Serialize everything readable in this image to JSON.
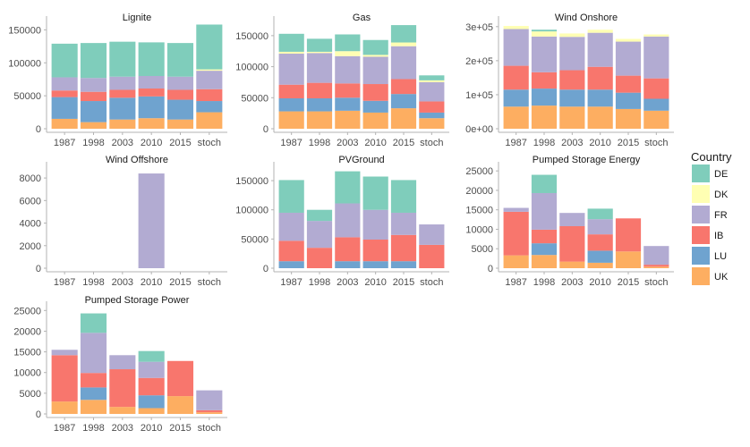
{
  "chart_data": {
    "type": "bar",
    "stacked": true,
    "legend": {
      "title": "Country",
      "placement": "right",
      "entries": [
        {
          "name": "DE",
          "color": "#7FCDBB"
        },
        {
          "name": "DK",
          "color": "#FFFFB3"
        },
        {
          "name": "FR",
          "color": "#B2ABD2"
        },
        {
          "name": "IB",
          "color": "#F8766D"
        },
        {
          "name": "LU",
          "color": "#6FA3CF"
        },
        {
          "name": "UK",
          "color": "#FDAE61"
        }
      ]
    },
    "stack_order_bottom_to_top": [
      "UK",
      "LU",
      "IB",
      "FR",
      "DK",
      "DE"
    ],
    "categories": [
      "1987",
      "1998",
      "2003",
      "2010",
      "2015",
      "stoch"
    ],
    "panels": [
      {
        "title": "Lignite",
        "ylim": [
          0,
          160000
        ],
        "yticks": [
          0,
          50000,
          100000,
          150000
        ],
        "ytick_labels": [
          "0",
          "50000",
          "100000",
          "150000"
        ],
        "series": [
          {
            "name": "UK",
            "values": [
              15000,
              10000,
              14000,
              16000,
              14000,
              25000
            ]
          },
          {
            "name": "LU",
            "values": [
              33000,
              32000,
              33000,
              33000,
              30000,
              17000
            ]
          },
          {
            "name": "IB",
            "values": [
              10000,
              14000,
              12000,
              12000,
              15000,
              18000
            ]
          },
          {
            "name": "FR",
            "values": [
              20000,
              21000,
              20000,
              19000,
              20000,
              28000
            ]
          },
          {
            "name": "DK",
            "values": [
              0,
              0,
              0,
              0,
              0,
              2000
            ]
          },
          {
            "name": "DE",
            "values": [
              51000,
              53000,
              53000,
              51000,
              51000,
              68000
            ]
          }
        ]
      },
      {
        "title": "Gas",
        "ylim": [
          0,
          170000
        ],
        "yticks": [
          0,
          50000,
          100000,
          150000
        ],
        "ytick_labels": [
          "0",
          "50000",
          "100000",
          "150000"
        ],
        "series": [
          {
            "name": "UK",
            "values": [
              28000,
              28000,
              29000,
              26000,
              33000,
              17000
            ]
          },
          {
            "name": "LU",
            "values": [
              21000,
              21000,
              21000,
              19000,
              23000,
              9000
            ]
          },
          {
            "name": "IB",
            "values": [
              22000,
              25000,
              23000,
              27000,
              24000,
              18000
            ]
          },
          {
            "name": "FR",
            "values": [
              50000,
              48000,
              44000,
              44000,
              53000,
              31000
            ]
          },
          {
            "name": "DK",
            "values": [
              3000,
              2000,
              8000,
              3000,
              6000,
              3000
            ]
          },
          {
            "name": "DE",
            "values": [
              29000,
              21000,
              27000,
              24000,
              28000,
              8000
            ]
          }
        ]
      },
      {
        "title": "Wind Onshore",
        "ylim": [
          0,
          310000
        ],
        "yticks": [
          0,
          100000,
          200000,
          300000
        ],
        "ytick_labels": [
          "0e+00",
          "1e+05",
          "2e+05",
          "3e+05"
        ],
        "series": [
          {
            "name": "UK",
            "values": [
              65000,
              68000,
              65000,
              65000,
              58000,
              53000
            ]
          },
          {
            "name": "LU",
            "values": [
              50000,
              50000,
              50000,
              50000,
              48000,
              35000
            ]
          },
          {
            "name": "IB",
            "values": [
              70000,
              48000,
              57000,
              67000,
              50000,
              60000
            ]
          },
          {
            "name": "FR",
            "values": [
              108000,
              105000,
              98000,
              100000,
              100000,
              123000
            ]
          },
          {
            "name": "DK",
            "values": [
              9000,
              15000,
              10000,
              9000,
              8000,
              6000
            ]
          },
          {
            "name": "DE",
            "values": [
              0,
              5000,
              0,
              0,
              0,
              0
            ]
          }
        ]
      },
      {
        "title": "Wind Offshore",
        "ylim": [
          0,
          8800
        ],
        "yticks": [
          0,
          2000,
          4000,
          6000,
          8000
        ],
        "ytick_labels": [
          "0",
          "2000",
          "4000",
          "6000",
          "8000"
        ],
        "series": [
          {
            "name": "UK",
            "values": [
              0,
              0,
              0,
              0,
              0,
              0
            ]
          },
          {
            "name": "LU",
            "values": [
              0,
              0,
              0,
              0,
              0,
              0
            ]
          },
          {
            "name": "IB",
            "values": [
              0,
              0,
              0,
              0,
              0,
              0
            ]
          },
          {
            "name": "FR",
            "values": [
              0,
              0,
              0,
              8400,
              0,
              0
            ]
          },
          {
            "name": "DK",
            "values": [
              0,
              0,
              0,
              0,
              0,
              0
            ]
          },
          {
            "name": "DE",
            "values": [
              0,
              0,
              0,
              0,
              0,
              0
            ]
          }
        ]
      },
      {
        "title": "PVGround",
        "ylim": [
          0,
          170000
        ],
        "yticks": [
          0,
          50000,
          100000,
          150000
        ],
        "ytick_labels": [
          "0",
          "50000",
          "100000",
          "150000"
        ],
        "series": [
          {
            "name": "UK",
            "values": [
              0,
              0,
              0,
              0,
              0,
              0
            ]
          },
          {
            "name": "LU",
            "values": [
              12000,
              0,
              12000,
              12000,
              12000,
              0
            ]
          },
          {
            "name": "IB",
            "values": [
              35000,
              35000,
              41000,
              37000,
              45000,
              40000
            ]
          },
          {
            "name": "FR",
            "values": [
              48000,
              46000,
              58000,
              51000,
              38000,
              35000
            ]
          },
          {
            "name": "DK",
            "values": [
              0,
              0,
              0,
              0,
              0,
              0
            ]
          },
          {
            "name": "DE",
            "values": [
              56000,
              19000,
              55000,
              57000,
              56000,
              0
            ]
          }
        ]
      },
      {
        "title": "Pumped Storage Energy",
        "ylim": [
          0,
          25500
        ],
        "yticks": [
          0,
          5000,
          10000,
          15000,
          20000,
          25000
        ],
        "ytick_labels": [
          "0",
          "5000",
          "10000",
          "15000",
          "20000",
          "25000"
        ],
        "series": [
          {
            "name": "UK",
            "values": [
              3300,
              3400,
              1700,
              1400,
              4300,
              400
            ]
          },
          {
            "name": "LU",
            "values": [
              0,
              3000,
              0,
              3100,
              0,
              0
            ]
          },
          {
            "name": "IB",
            "values": [
              11200,
              3500,
              9100,
              4200,
              8500,
              500
            ]
          },
          {
            "name": "FR",
            "values": [
              1000,
              9400,
              3400,
              3900,
              0,
              4800
            ]
          },
          {
            "name": "DK",
            "values": [
              0,
              0,
              0,
              0,
              0,
              0
            ]
          },
          {
            "name": "DE",
            "values": [
              0,
              4700,
              0,
              2700,
              0,
              0
            ]
          }
        ]
      },
      {
        "title": "Pumped Storage Power",
        "ylim": [
          0,
          25500
        ],
        "yticks": [
          0,
          5000,
          10000,
          15000,
          20000,
          25000
        ],
        "ytick_labels": [
          "0",
          "5000",
          "10000",
          "15000",
          "20000",
          "25000"
        ],
        "series": [
          {
            "name": "UK",
            "values": [
              3000,
              3400,
              1700,
              1400,
              4300,
              400
            ]
          },
          {
            "name": "LU",
            "values": [
              0,
              3000,
              0,
              3100,
              0,
              0
            ]
          },
          {
            "name": "IB",
            "values": [
              11200,
              3500,
              9100,
              4200,
              8500,
              500
            ]
          },
          {
            "name": "FR",
            "values": [
              1300,
              9700,
              3400,
              3900,
              0,
              4800
            ]
          },
          {
            "name": "DK",
            "values": [
              0,
              0,
              0,
              0,
              0,
              0
            ]
          },
          {
            "name": "DE",
            "values": [
              0,
              4700,
              0,
              2600,
              0,
              0
            ]
          }
        ]
      }
    ]
  }
}
